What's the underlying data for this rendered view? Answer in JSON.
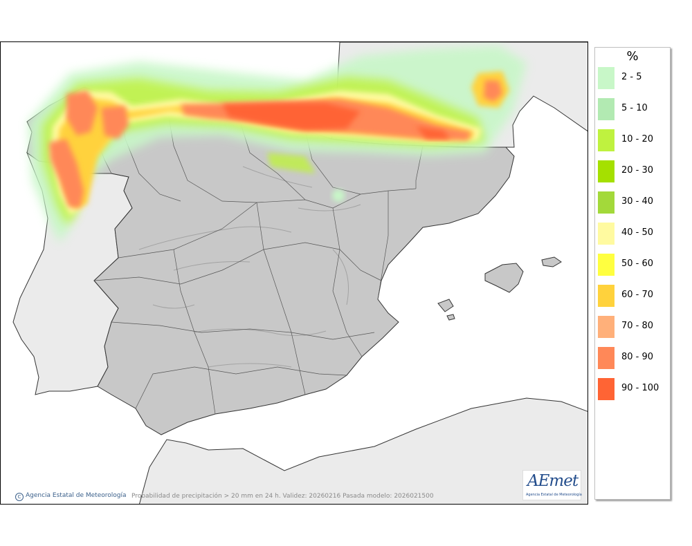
{
  "map": {
    "credit": "Agencia Estatal de Meteorología",
    "caption": "Probabilidad de precipitación > 20 mm en 24 h. Validez: 20260216 Pasada modelo: 2026021500",
    "logo": {
      "text": "AEmet",
      "subtitle": "Agencia Estatal de Meteorología"
    },
    "colors": {
      "sea": "#ffffff",
      "land_outside": "#ebebeb",
      "land_spain": "#c8c8c8",
      "borders": "#333333"
    }
  },
  "legend": {
    "title": "%",
    "items": [
      {
        "label": "2 - 5",
        "color": "#c8f7c8"
      },
      {
        "label": "5 - 10",
        "color": "#b2eab2"
      },
      {
        "label": "10 - 20",
        "color": "#bff23f"
      },
      {
        "label": "20 - 30",
        "color": "#a5e000"
      },
      {
        "label": "30 - 40",
        "color": "#a3d93a"
      },
      {
        "label": "40 - 50",
        "color": "#fffaa0"
      },
      {
        "label": "50 - 60",
        "color": "#ffff40"
      },
      {
        "label": "60 - 70",
        "color": "#ffd23c"
      },
      {
        "label": "70 - 80",
        "color": "#ffb07a"
      },
      {
        "label": "80 - 90",
        "color": "#ff8858"
      },
      {
        "label": "90 - 100",
        "color": "#ff6434"
      }
    ]
  }
}
